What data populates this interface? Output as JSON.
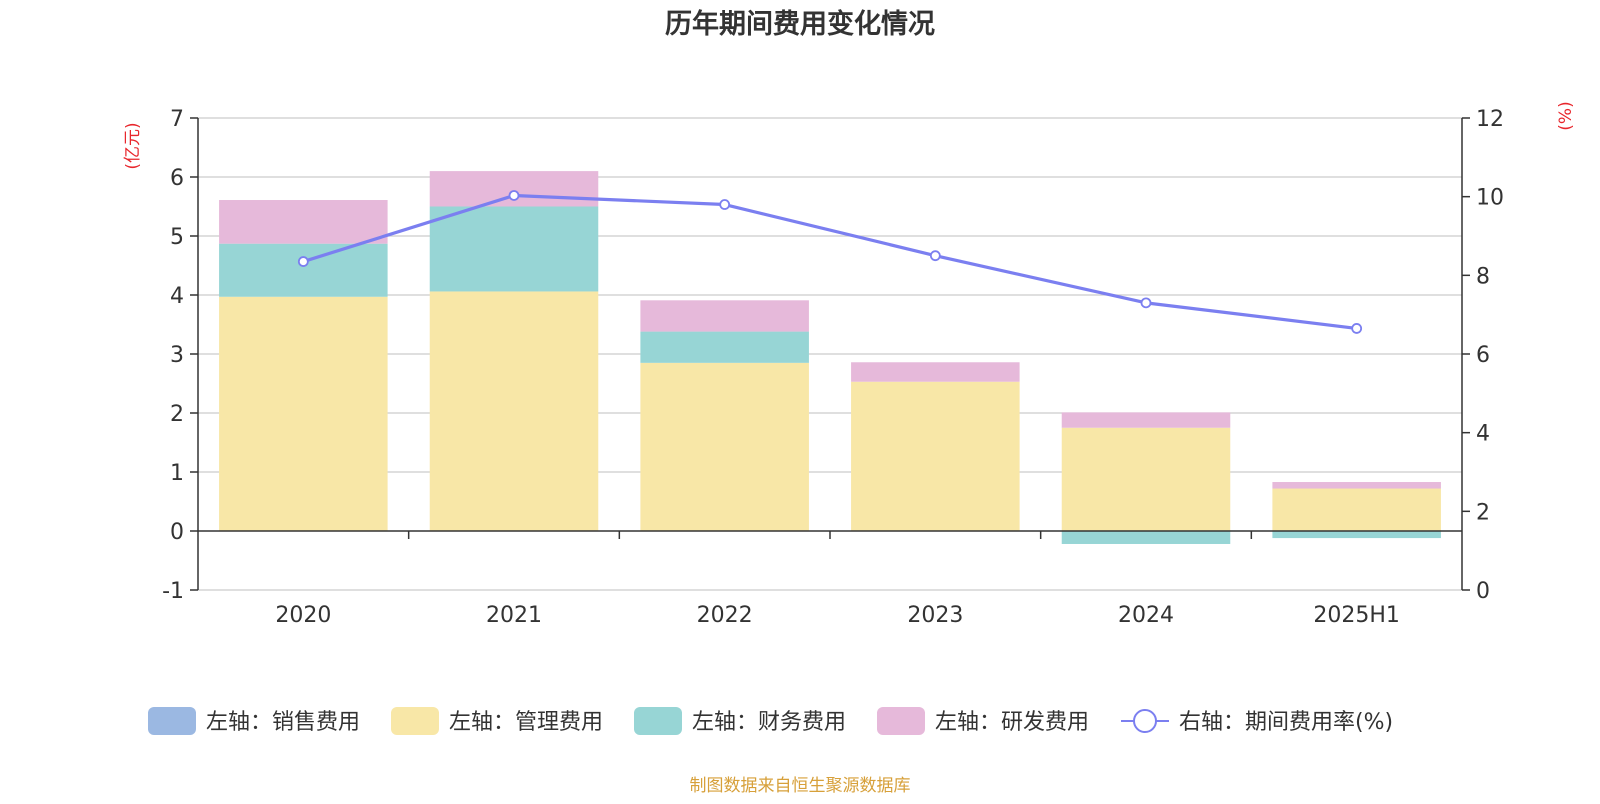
{
  "chart_data": {
    "type": "bar",
    "title": "历年期间费用变化情况",
    "left_axis_unit": "(亿元)",
    "right_axis_unit": "(%)",
    "categories": [
      "2020",
      "2021",
      "2022",
      "2023",
      "2024",
      "2025H1"
    ],
    "left_axis": {
      "ylim": [
        -1,
        7
      ],
      "ticks": [
        "-1",
        "0",
        "1",
        "2",
        "3",
        "4",
        "5",
        "6",
        "7"
      ]
    },
    "right_axis": {
      "ylim": [
        0,
        12
      ],
      "ticks": [
        "0",
        "2",
        "4",
        "6",
        "8",
        "10",
        "12"
      ]
    },
    "grid": true,
    "stacked": true,
    "series": [
      {
        "name": "左轴：销售费用",
        "type": "bar",
        "axis": "left",
        "color": "#9bb8e2",
        "values": [
          0,
          0,
          0,
          0,
          0,
          0
        ]
      },
      {
        "name": "左轴：管理费用",
        "type": "bar",
        "axis": "left",
        "color": "#f8e7a7",
        "values": [
          3.97,
          4.06,
          2.85,
          2.53,
          1.75,
          0.72
        ]
      },
      {
        "name": "左轴：财务费用",
        "type": "bar",
        "axis": "left",
        "color": "#97d5d5",
        "values": [
          0.9,
          1.44,
          0.53,
          0,
          -0.22,
          -0.12
        ]
      },
      {
        "name": "左轴：研发费用",
        "type": "bar",
        "axis": "left",
        "color": "#e6b9da",
        "values": [
          0.74,
          0.6,
          0.53,
          0.33,
          0.26,
          0.11
        ]
      },
      {
        "name": "右轴：期间费用率(%)",
        "type": "line",
        "axis": "right",
        "color": "#7b7ff0",
        "values": [
          8.35,
          10.03,
          9.8,
          8.5,
          7.3,
          6.65
        ]
      }
    ],
    "legend_position": "bottom",
    "source_note": "制图数据来自恒生聚源数据库"
  }
}
